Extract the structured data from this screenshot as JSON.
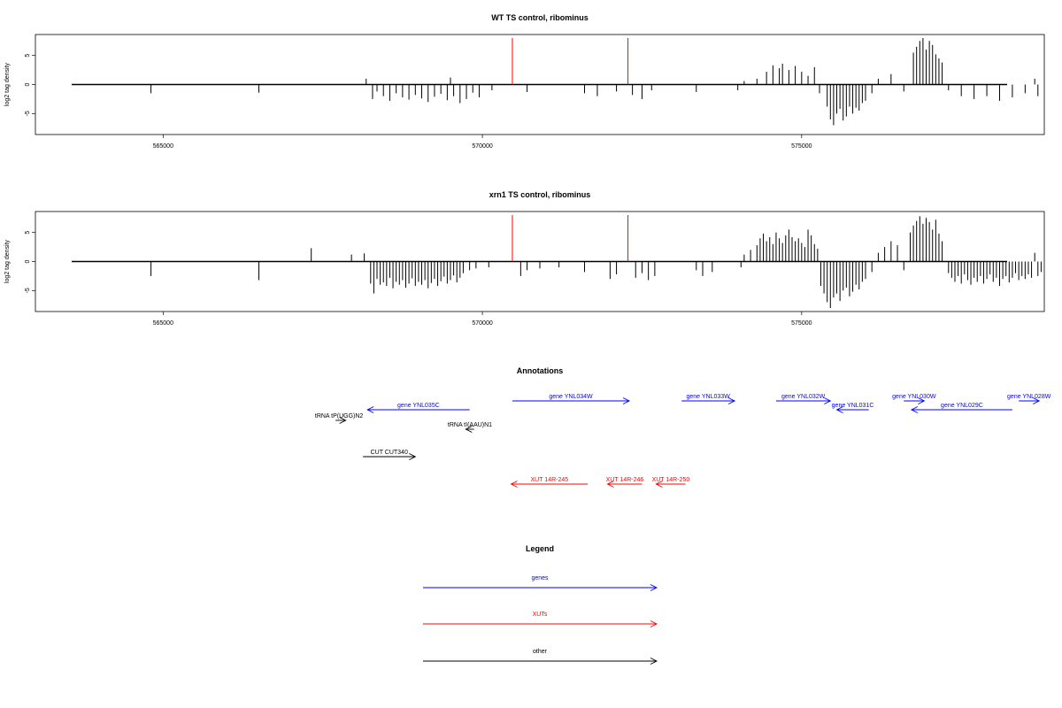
{
  "chart_data": {
    "type": "genome-track",
    "x_ticks": [
      565000,
      570000,
      575000
    ],
    "y_ticks": [
      5,
      0,
      -5
    ],
    "xlim": [
      563000,
      578800
    ],
    "ylim": [
      -8,
      8
    ],
    "ylabel": "log2 tag density",
    "red_markers": [
      570470,
      572280
    ],
    "panels": [
      {
        "title": "WT TS control, ribominus",
        "bars": [
          [
            564810,
            -1.5
          ],
          [
            566500,
            -1.4
          ],
          [
            568180,
            1.0
          ],
          [
            568280,
            -2.5
          ],
          [
            568350,
            -1.2
          ],
          [
            568450,
            -2.0
          ],
          [
            568550,
            -2.8
          ],
          [
            568650,
            -1.5
          ],
          [
            568750,
            -2.2
          ],
          [
            568850,
            -2.6
          ],
          [
            568950,
            -1.8
          ],
          [
            569050,
            -2.4
          ],
          [
            569150,
            -3.0
          ],
          [
            569250,
            -2.1
          ],
          [
            569350,
            -1.6
          ],
          [
            569450,
            -2.7
          ],
          [
            569500,
            1.2
          ],
          [
            569550,
            -2.0
          ],
          [
            569650,
            -3.2
          ],
          [
            569750,
            -2.5
          ],
          [
            569850,
            -1.4
          ],
          [
            569950,
            -2.2
          ],
          [
            570150,
            -1.0
          ],
          [
            570700,
            -1.3
          ],
          [
            571600,
            -1.5
          ],
          [
            571800,
            -2.0
          ],
          [
            572100,
            -1.2
          ],
          [
            572350,
            -1.8
          ],
          [
            572500,
            -2.5
          ],
          [
            572650,
            -1.0
          ],
          [
            573350,
            -1.3
          ],
          [
            574000,
            -1.0
          ],
          [
            574100,
            0.6
          ],
          [
            574300,
            1.0
          ],
          [
            574450,
            2.2
          ],
          [
            574550,
            3.3
          ],
          [
            574650,
            2.8
          ],
          [
            574700,
            3.6
          ],
          [
            574800,
            2.5
          ],
          [
            574900,
            3.2
          ],
          [
            575000,
            2.2
          ],
          [
            575100,
            1.5
          ],
          [
            575200,
            3.0
          ],
          [
            575280,
            -1.5
          ],
          [
            575400,
            -3.8
          ],
          [
            575450,
            -6.0
          ],
          [
            575500,
            -7.0
          ],
          [
            575550,
            -5.0
          ],
          [
            575600,
            -4.2
          ],
          [
            575650,
            -6.2
          ],
          [
            575700,
            -5.5
          ],
          [
            575750,
            -3.8
          ],
          [
            575800,
            -5.0
          ],
          [
            575850,
            -4.0
          ],
          [
            575900,
            -4.5
          ],
          [
            575950,
            -3.2
          ],
          [
            576000,
            -2.8
          ],
          [
            576100,
            -1.5
          ],
          [
            576200,
            1.0
          ],
          [
            576400,
            1.8
          ],
          [
            576600,
            -1.2
          ],
          [
            576750,
            5.5
          ],
          [
            576800,
            6.5
          ],
          [
            576850,
            7.5
          ],
          [
            576900,
            8.0
          ],
          [
            576950,
            6.0
          ],
          [
            577000,
            7.5
          ],
          [
            577050,
            6.8
          ],
          [
            577100,
            5.2
          ],
          [
            577150,
            4.5
          ],
          [
            577200,
            3.8
          ],
          [
            577300,
            -1.0
          ],
          [
            577500,
            -2.0
          ],
          [
            577700,
            -2.5
          ],
          [
            577900,
            -2.0
          ],
          [
            578100,
            -2.8
          ],
          [
            578300,
            -2.2
          ],
          [
            578500,
            -1.5
          ],
          [
            578650,
            1.0
          ],
          [
            578700,
            -2.0
          ]
        ]
      },
      {
        "title": "xrn1 TS control, ribominus",
        "bars": [
          [
            564810,
            -2.5
          ],
          [
            566500,
            -3.2
          ],
          [
            567320,
            2.3
          ],
          [
            567950,
            1.2
          ],
          [
            568150,
            1.4
          ],
          [
            568250,
            -3.8
          ],
          [
            568300,
            -5.5
          ],
          [
            568350,
            -3.0
          ],
          [
            568400,
            -4.0
          ],
          [
            568450,
            -3.6
          ],
          [
            568500,
            -4.2
          ],
          [
            568550,
            -2.8
          ],
          [
            568600,
            -4.6
          ],
          [
            568650,
            -3.5
          ],
          [
            568700,
            -4.0
          ],
          [
            568750,
            -3.2
          ],
          [
            568800,
            -4.5
          ],
          [
            568850,
            -3.8
          ],
          [
            568900,
            -2.9
          ],
          [
            568950,
            -4.2
          ],
          [
            569000,
            -3.5
          ],
          [
            569050,
            -4.0
          ],
          [
            569100,
            -3.2
          ],
          [
            569150,
            -4.6
          ],
          [
            569200,
            -3.7
          ],
          [
            569250,
            -3.0
          ],
          [
            569300,
            -4.2
          ],
          [
            569350,
            -3.4
          ],
          [
            569400,
            -2.6
          ],
          [
            569450,
            -3.8
          ],
          [
            569500,
            -3.2
          ],
          [
            569550,
            -2.4
          ],
          [
            569600,
            -3.6
          ],
          [
            569650,
            -2.8
          ],
          [
            569700,
            -2.0
          ],
          [
            569800,
            -1.5
          ],
          [
            569900,
            -1.2
          ],
          [
            570100,
            -1.0
          ],
          [
            570600,
            -2.5
          ],
          [
            570700,
            -1.5
          ],
          [
            570900,
            -1.2
          ],
          [
            571200,
            -1.0
          ],
          [
            571600,
            -1.8
          ],
          [
            572000,
            -3.0
          ],
          [
            572100,
            -2.2
          ],
          [
            572400,
            -2.8
          ],
          [
            572500,
            -2.0
          ],
          [
            572600,
            -3.2
          ],
          [
            572700,
            -2.5
          ],
          [
            573350,
            -1.5
          ],
          [
            573450,
            -2.5
          ],
          [
            573600,
            -1.8
          ],
          [
            574050,
            -1.0
          ],
          [
            574100,
            1.2
          ],
          [
            574200,
            2.0
          ],
          [
            574300,
            2.8
          ],
          [
            574350,
            4.0
          ],
          [
            574400,
            4.8
          ],
          [
            574450,
            3.5
          ],
          [
            574500,
            4.2
          ],
          [
            574550,
            3.0
          ],
          [
            574600,
            5.0
          ],
          [
            574650,
            4.0
          ],
          [
            574700,
            3.2
          ],
          [
            574750,
            4.5
          ],
          [
            574800,
            5.5
          ],
          [
            574850,
            4.2
          ],
          [
            574900,
            3.5
          ],
          [
            574950,
            4.0
          ],
          [
            575000,
            3.2
          ],
          [
            575050,
            2.5
          ],
          [
            575100,
            5.5
          ],
          [
            575150,
            4.5
          ],
          [
            575200,
            3.0
          ],
          [
            575250,
            2.2
          ],
          [
            575300,
            -4.2
          ],
          [
            575350,
            -5.5
          ],
          [
            575400,
            -7.0
          ],
          [
            575450,
            -8.0
          ],
          [
            575500,
            -6.2
          ],
          [
            575550,
            -5.5
          ],
          [
            575600,
            -6.8
          ],
          [
            575650,
            -5.0
          ],
          [
            575700,
            -4.5
          ],
          [
            575750,
            -6.0
          ],
          [
            575800,
            -5.2
          ],
          [
            575850,
            -4.0
          ],
          [
            575900,
            -4.8
          ],
          [
            575950,
            -3.5
          ],
          [
            576000,
            -3.0
          ],
          [
            576100,
            -1.8
          ],
          [
            576200,
            1.5
          ],
          [
            576300,
            2.5
          ],
          [
            576400,
            3.5
          ],
          [
            576500,
            2.8
          ],
          [
            576600,
            -1.5
          ],
          [
            576700,
            5.0
          ],
          [
            576750,
            6.2
          ],
          [
            576800,
            7.0
          ],
          [
            576850,
            7.8
          ],
          [
            576900,
            6.5
          ],
          [
            576950,
            7.5
          ],
          [
            577000,
            6.8
          ],
          [
            577050,
            5.5
          ],
          [
            577100,
            7.2
          ],
          [
            577150,
            4.8
          ],
          [
            577200,
            3.5
          ],
          [
            577300,
            -2.0
          ],
          [
            577350,
            -2.8
          ],
          [
            577400,
            -3.5
          ],
          [
            577450,
            -2.5
          ],
          [
            577500,
            -3.8
          ],
          [
            577550,
            -2.2
          ],
          [
            577600,
            -3.2
          ],
          [
            577650,
            -4.0
          ],
          [
            577700,
            -2.8
          ],
          [
            577750,
            -3.5
          ],
          [
            577800,
            -2.5
          ],
          [
            577850,
            -3.8
          ],
          [
            577900,
            -3.0
          ],
          [
            577950,
            -2.2
          ],
          [
            578000,
            -3.5
          ],
          [
            578050,
            -2.8
          ],
          [
            578100,
            -4.2
          ],
          [
            578150,
            -3.0
          ],
          [
            578200,
            -2.5
          ],
          [
            578250,
            -3.6
          ],
          [
            578300,
            -2.8
          ],
          [
            578350,
            -2.0
          ],
          [
            578400,
            -3.2
          ],
          [
            578450,
            -2.5
          ],
          [
            578500,
            -3.0
          ],
          [
            578550,
            -2.2
          ],
          [
            578600,
            -2.8
          ],
          [
            578650,
            1.5
          ],
          [
            578700,
            -2.5
          ],
          [
            578750,
            -1.8
          ]
        ]
      }
    ],
    "annotations_title": "Annotations",
    "annotations": [
      {
        "label": "gene YNL035C",
        "start": 569800,
        "end": 568200,
        "row": 1,
        "type": "gene"
      },
      {
        "label": "gene YNL034W",
        "start": 570470,
        "end": 572300,
        "row": 0,
        "type": "gene"
      },
      {
        "label": "gene YNL033W",
        "start": 573120,
        "end": 573950,
        "row": 0,
        "type": "gene"
      },
      {
        "label": "gene YNL032W",
        "start": 574600,
        "end": 575450,
        "row": 0,
        "type": "gene"
      },
      {
        "label": "gene YNL031C",
        "start": 576050,
        "end": 575550,
        "row": 1,
        "type": "gene"
      },
      {
        "label": "gene YNL030W",
        "start": 576600,
        "end": 576920,
        "row": 0,
        "type": "gene"
      },
      {
        "label": "gene YNL029C",
        "start": 578300,
        "end": 576720,
        "row": 1,
        "type": "gene"
      },
      {
        "label": "gene YNL028W",
        "start": 578400,
        "end": 578720,
        "row": 0,
        "type": "gene"
      },
      {
        "label": "tRNA tP(UGG)N2",
        "start": 567700,
        "end": 567860,
        "row": 2,
        "type": "other"
      },
      {
        "label": "tRNA tI(AAU)N1",
        "start": 569870,
        "end": 569740,
        "row": 3,
        "type": "other"
      },
      {
        "label": "CUT CUT340",
        "start": 568130,
        "end": 568950,
        "row": 4,
        "type": "other"
      },
      {
        "label": "XUT 14R-245",
        "start": 571650,
        "end": 570450,
        "row": 5,
        "type": "xut"
      },
      {
        "label": "XUT 14R-246",
        "start": 572500,
        "end": 571960,
        "row": 5,
        "type": "xut"
      },
      {
        "label": "XUT 14R-250",
        "start": 573180,
        "end": 572720,
        "row": 5,
        "type": "xut"
      }
    ],
    "legend_title": "Legend",
    "legend": [
      {
        "label": "genes",
        "type": "gene"
      },
      {
        "label": "XUTs",
        "type": "xut"
      },
      {
        "label": "other",
        "type": "other"
      }
    ],
    "colors": {
      "gene": "#0000ff",
      "xut": "#ff0000",
      "other": "#000000",
      "marker": "#ff0000"
    }
  }
}
